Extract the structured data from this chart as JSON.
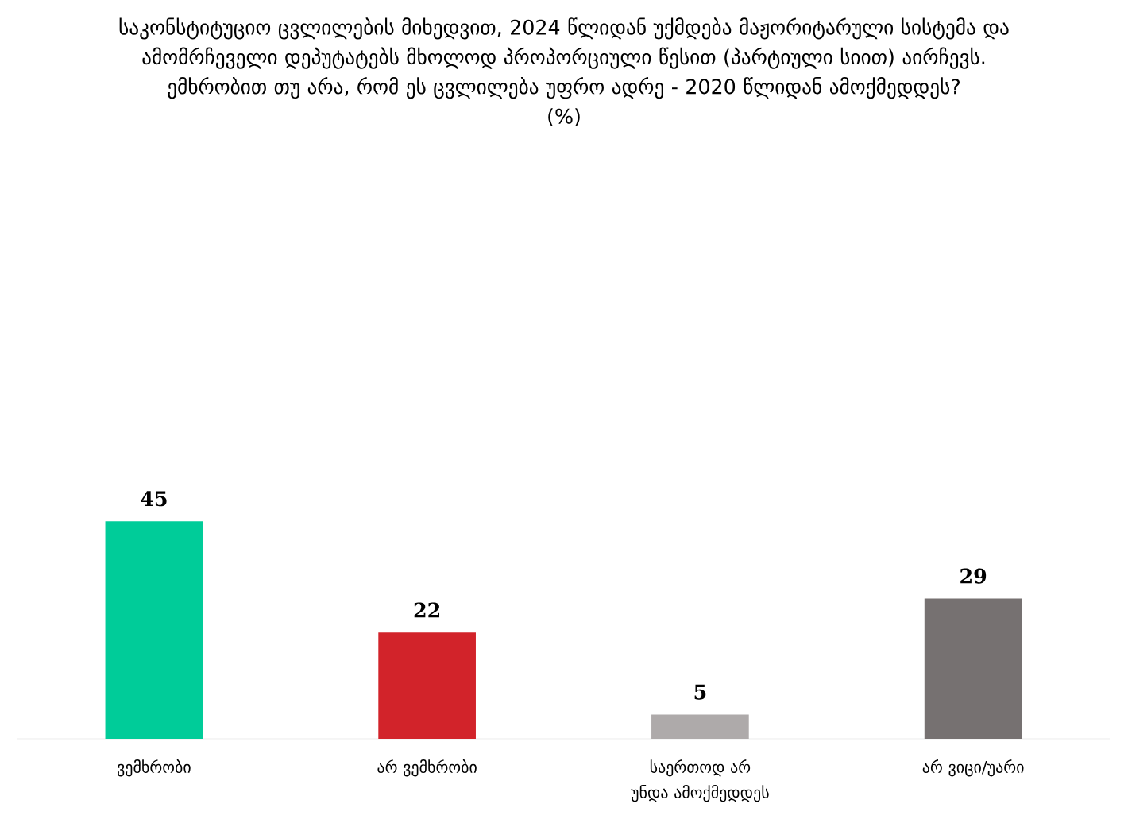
{
  "chart_data": {
    "type": "bar",
    "title": "საკონსტიტუციო ცვლილების მიხედვით, 2024 წლიდან უქმდება მაჟორიტარული სისტემა და ამომრჩეველი დეპუტატებს მხოლოდ პროპორციული წესით (პარტიული სიით) აირჩევს. ემხრობით თუ არა, რომ ეს ცვლილება უფრო ადრე - 2020 წლიდან ამოქმედდეს?",
    "subtitle": "(%)",
    "categories": [
      "ვემხრობი",
      "არ ვემხრობი",
      "საერთოდ არ უნდა ამოქმედდეს",
      "არ ვიცი/უარი"
    ],
    "values": [
      45,
      22,
      5,
      29
    ],
    "colors": [
      "#00cc99",
      "#d2232a",
      "#aeaaaa",
      "#767171"
    ],
    "data_labels": true
  }
}
